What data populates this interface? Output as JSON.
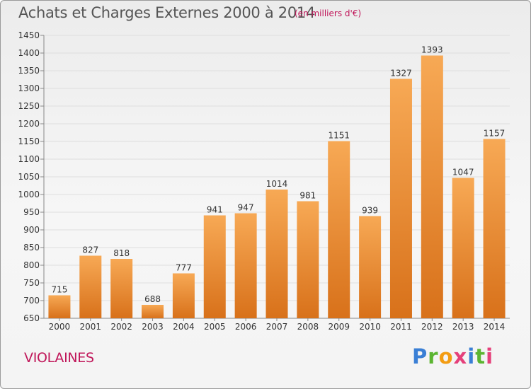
{
  "title": "Achats et Charges Externes 2000 à 2014",
  "unit_note": "(en milliers d'€)",
  "commune": "VIOLAINES",
  "logo": {
    "letters": [
      "P",
      "r",
      "o",
      "x",
      "i",
      "t",
      "i"
    ],
    "colors": [
      "#3a7fd5",
      "#5cb531",
      "#f39c12",
      "#e5407a",
      "#3a7fd5",
      "#5cb531",
      "#e5407a"
    ]
  },
  "colors": {
    "bar_top": "#F7A955",
    "bar_bottom": "#D8711A",
    "accent": "#C0175A"
  },
  "chart_data": {
    "type": "bar",
    "title": "Achats et Charges Externes 2000 à 2014",
    "subtitle": "(en milliers d'€)",
    "categories": [
      "2000",
      "2001",
      "2002",
      "2003",
      "2004",
      "2005",
      "2006",
      "2007",
      "2008",
      "2009",
      "2010",
      "2011",
      "2012",
      "2013",
      "2014"
    ],
    "values": [
      715,
      827,
      818,
      688,
      777,
      941,
      947,
      1014,
      981,
      1151,
      939,
      1327,
      1393,
      1047,
      1157
    ],
    "ylim": [
      650,
      1450
    ],
    "yticks": [
      650,
      700,
      750,
      800,
      850,
      900,
      950,
      1000,
      1050,
      1100,
      1150,
      1200,
      1250,
      1300,
      1350,
      1400,
      1450
    ],
    "grid": true,
    "legend": "none"
  }
}
